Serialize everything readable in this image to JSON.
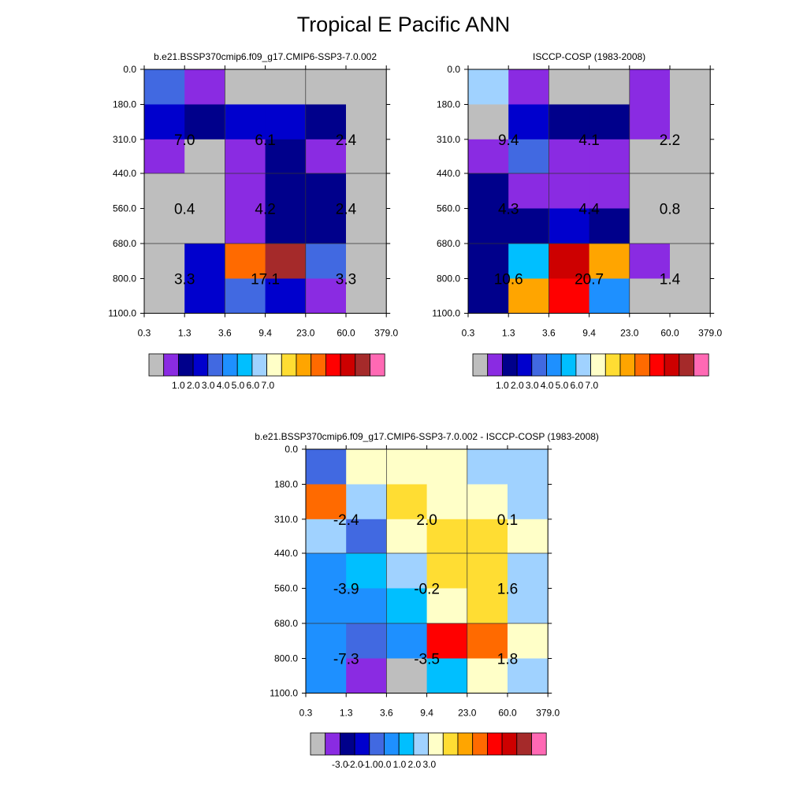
{
  "title": "Tropical E Pacific ANN",
  "x_ticks": [
    "0.3",
    "1.3",
    "3.6",
    "9.4",
    "23.0",
    "60.0",
    "379.0"
  ],
  "y_ticks": [
    "0.0",
    "180.0",
    "310.0",
    "440.0",
    "560.0",
    "680.0",
    "800.0",
    "1100.0"
  ],
  "palette": [
    "#bebebe",
    "#8a2be2",
    "#00008b",
    "#0000cd",
    "#4169e1",
    "#1e90ff",
    "#00bfff",
    "#a0d2ff",
    "#ffffc8",
    "#ffdd33",
    "#ffa500",
    "#ff6a00",
    "#ff0000",
    "#cd0000",
    "#a52a2a",
    "#ff69b4"
  ],
  "colorbars": {
    "abs": {
      "labels": [
        "1.0",
        "2.0",
        "3.0",
        "4.0",
        "5.0",
        "6.0",
        "7.0"
      ]
    },
    "diff": {
      "labels": [
        "-3.0",
        "-2.0",
        "-1.0",
        "0.0",
        "1.0",
        "2.0",
        "3.0"
      ]
    }
  },
  "chart_data": [
    {
      "type": "heatmap",
      "title": "b.e21.BSSP370cmip6.f09_g17.CMIP6-SSP3-7.0.002",
      "colorbar": "abs",
      "cell_colors": [
        [
          4,
          1,
          0,
          0,
          0,
          0
        ],
        [
          3,
          2,
          3,
          3,
          2,
          0
        ],
        [
          1,
          0,
          1,
          2,
          1,
          0
        ],
        [
          0,
          0,
          1,
          2,
          2,
          0
        ],
        [
          0,
          0,
          1,
          2,
          2,
          0
        ],
        [
          0,
          3,
          11,
          14,
          4,
          0
        ],
        [
          0,
          3,
          4,
          3,
          1,
          0
        ]
      ],
      "labels": [
        {
          "row": 1,
          "cg": 0,
          "text": "7.0"
        },
        {
          "row": 1,
          "cg": 1,
          "text": "6.1"
        },
        {
          "row": 1,
          "cg": 2,
          "text": "2.4"
        },
        {
          "row": 3,
          "cg": 0,
          "text": "0.4"
        },
        {
          "row": 3,
          "cg": 1,
          "text": "4.2"
        },
        {
          "row": 3,
          "cg": 2,
          "text": "2.4"
        },
        {
          "row": 5,
          "cg": 0,
          "text": "3.3"
        },
        {
          "row": 5,
          "cg": 1,
          "text": "17.1"
        },
        {
          "row": 5,
          "cg": 2,
          "text": "3.3"
        }
      ]
    },
    {
      "type": "heatmap",
      "title": "ISCCP-COSP (1983-2008)",
      "colorbar": "abs",
      "cell_colors": [
        [
          7,
          1,
          0,
          0,
          1,
          0
        ],
        [
          0,
          3,
          2,
          2,
          1,
          0
        ],
        [
          1,
          4,
          1,
          1,
          0,
          0
        ],
        [
          2,
          1,
          1,
          1,
          0,
          0
        ],
        [
          2,
          2,
          3,
          2,
          0,
          0
        ],
        [
          2,
          6,
          13,
          10,
          1,
          0
        ],
        [
          2,
          10,
          12,
          5,
          0,
          0
        ]
      ],
      "labels": [
        {
          "row": 1,
          "cg": 0,
          "text": "9.4"
        },
        {
          "row": 1,
          "cg": 1,
          "text": "4.1"
        },
        {
          "row": 1,
          "cg": 2,
          "text": "2.2"
        },
        {
          "row": 3,
          "cg": 0,
          "text": "4.3"
        },
        {
          "row": 3,
          "cg": 1,
          "text": "4.4"
        },
        {
          "row": 3,
          "cg": 2,
          "text": "0.8"
        },
        {
          "row": 5,
          "cg": 0,
          "text": "10.6"
        },
        {
          "row": 5,
          "cg": 1,
          "text": "20.7"
        },
        {
          "row": 5,
          "cg": 2,
          "text": "1.4"
        }
      ]
    },
    {
      "type": "heatmap",
      "title": "b.e21.BSSP370cmip6.f09_g17.CMIP6-SSP3-7.0.002 - ISCCP-COSP (1983-2008)",
      "colorbar": "diff",
      "cell_colors": [
        [
          4,
          8,
          8,
          8,
          7,
          7
        ],
        [
          11,
          7,
          9,
          8,
          8,
          7
        ],
        [
          7,
          4,
          8,
          9,
          9,
          8
        ],
        [
          5,
          6,
          7,
          9,
          9,
          7
        ],
        [
          5,
          5,
          6,
          8,
          9,
          7
        ],
        [
          5,
          4,
          5,
          12,
          11,
          8
        ],
        [
          5,
          1,
          0,
          6,
          8,
          7
        ]
      ],
      "labels": [
        {
          "row": 1,
          "cg": 0,
          "text": "-2.4"
        },
        {
          "row": 1,
          "cg": 1,
          "text": "2.0"
        },
        {
          "row": 1,
          "cg": 2,
          "text": "0.1"
        },
        {
          "row": 3,
          "cg": 0,
          "text": "-3.9"
        },
        {
          "row": 3,
          "cg": 1,
          "text": "-0.2"
        },
        {
          "row": 3,
          "cg": 2,
          "text": "1.6"
        },
        {
          "row": 5,
          "cg": 0,
          "text": "-7.3"
        },
        {
          "row": 5,
          "cg": 1,
          "text": "-3.5"
        },
        {
          "row": 5,
          "cg": 2,
          "text": "1.8"
        }
      ]
    }
  ]
}
